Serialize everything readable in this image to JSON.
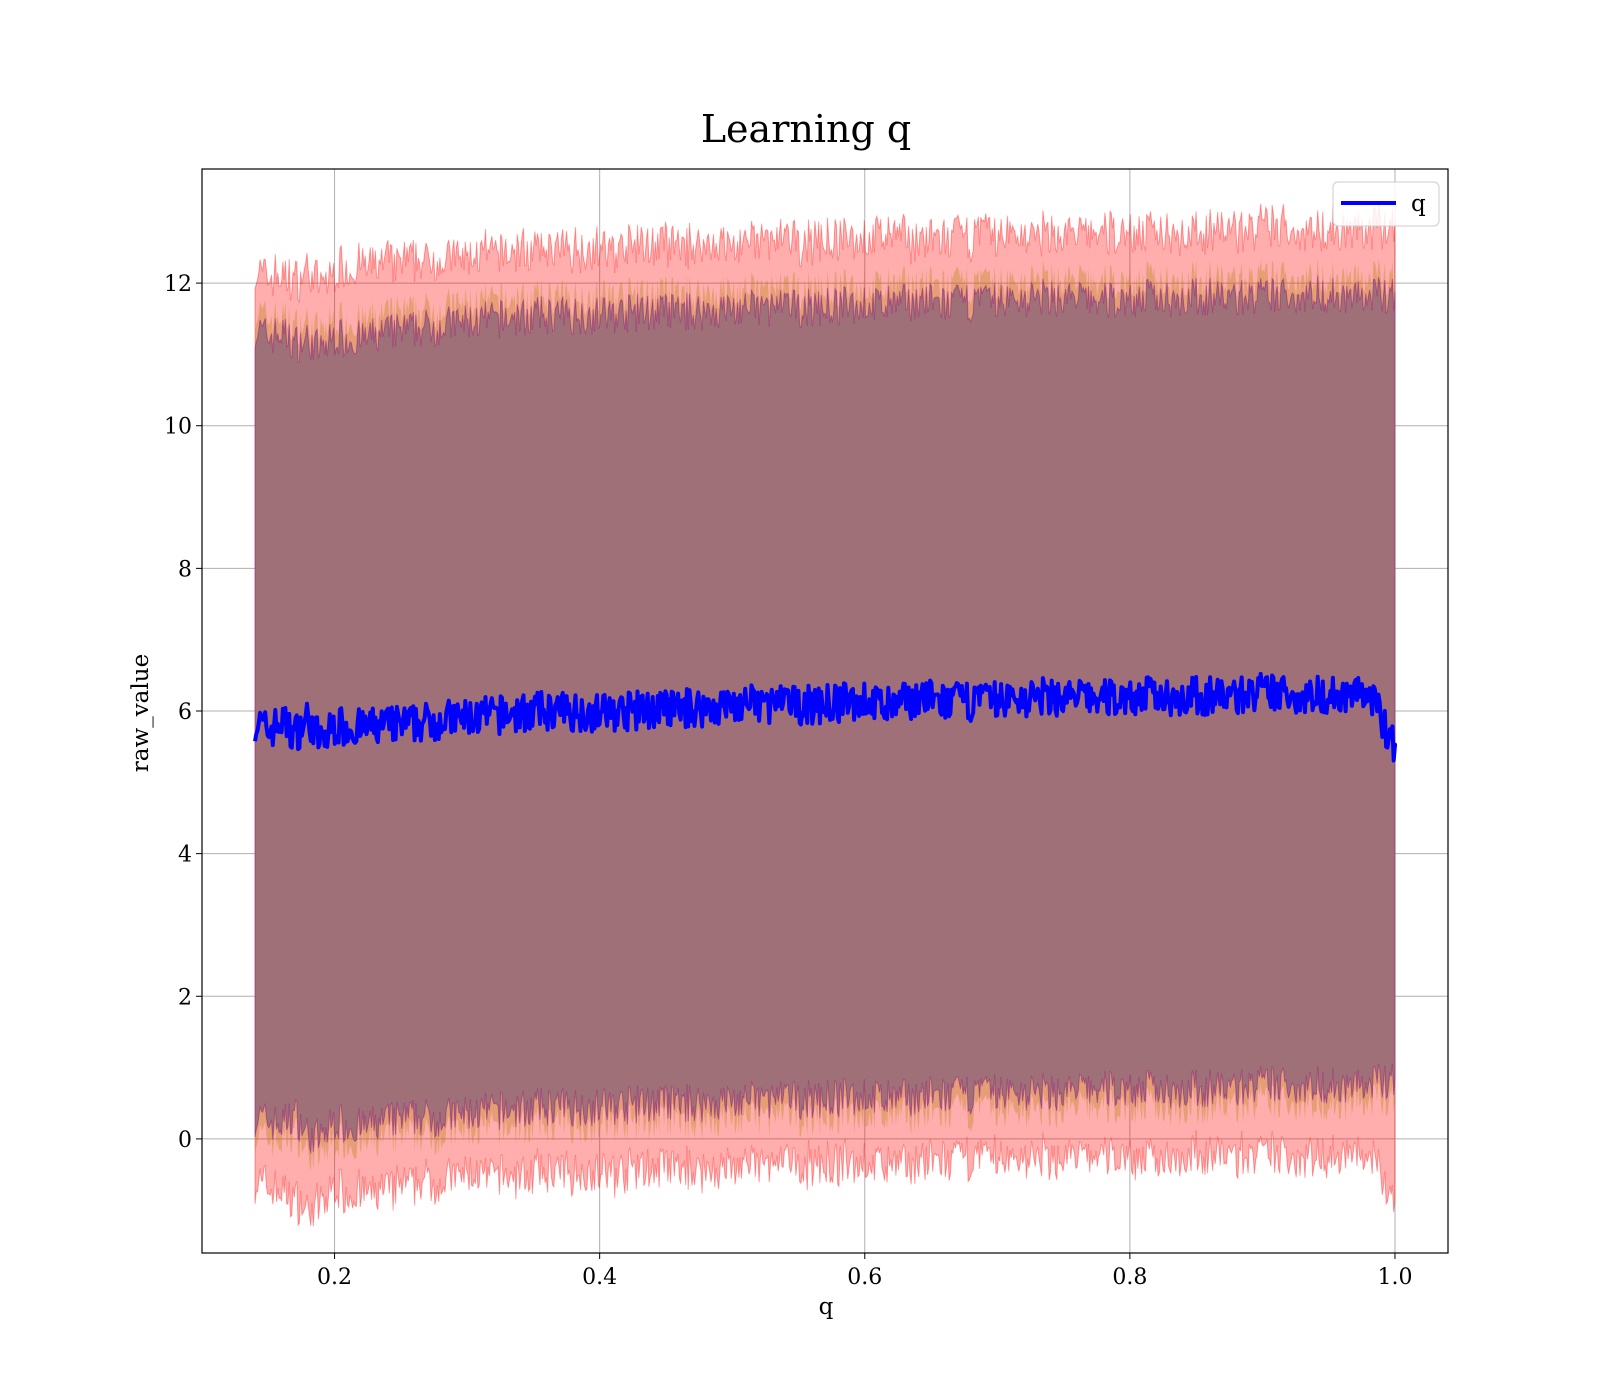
{
  "chart_data": {
    "type": "line",
    "title": "Learning q",
    "xlabel": "q",
    "ylabel": "raw_value",
    "xlim": [
      0.1,
      1.04
    ],
    "ylim": [
      -1.6,
      13.6
    ],
    "xticks": [
      0.2,
      0.4,
      0.6,
      0.8,
      1.0
    ],
    "xtick_labels": [
      "0.2",
      "0.4",
      "0.6",
      "0.8",
      "1.0"
    ],
    "yticks": [
      0,
      2,
      4,
      6,
      8,
      10,
      12
    ],
    "ytick_labels": [
      "0",
      "2",
      "4",
      "6",
      "8",
      "10",
      "12"
    ],
    "grid": true,
    "legend": {
      "location": "top-right",
      "entries": [
        {
          "label": "q",
          "color": "#0000ff"
        }
      ]
    },
    "colors": {
      "line": "#0000ff",
      "band_inner": "#800080",
      "band_outer": "#ff0000",
      "band_mid": "#b8860b",
      "fill_main": "#a07078"
    },
    "series": [
      {
        "name": "q",
        "x": [
          0.14,
          0.15,
          0.16,
          0.17,
          0.18,
          0.19,
          0.2,
          0.22,
          0.24,
          0.26,
          0.28,
          0.3,
          0.33,
          0.36,
          0.4,
          0.44,
          0.48,
          0.52,
          0.56,
          0.6,
          0.62,
          0.64,
          0.66,
          0.7,
          0.74,
          0.78,
          0.82,
          0.86,
          0.9,
          0.94,
          0.98,
          1.0
        ],
        "mean": [
          5.85,
          5.72,
          5.85,
          5.68,
          5.9,
          5.55,
          5.8,
          5.75,
          5.8,
          5.82,
          5.88,
          5.9,
          5.95,
          6.0,
          5.98,
          6.02,
          6.05,
          6.1,
          6.08,
          6.15,
          6.05,
          6.2,
          6.12,
          6.15,
          6.2,
          6.18,
          6.22,
          6.2,
          6.25,
          6.22,
          6.25,
          5.5
        ],
        "upper_inner": [
          11.6,
          11.5,
          11.55,
          11.4,
          11.45,
          11.3,
          11.5,
          11.45,
          11.55,
          11.6,
          11.65,
          11.7,
          11.75,
          11.8,
          11.8,
          11.85,
          11.85,
          11.9,
          11.9,
          11.95,
          11.95,
          12.0,
          11.95,
          12.0,
          12.05,
          12.0,
          12.05,
          12.05,
          12.05,
          12.1,
          12.05,
          12.1
        ],
        "upper_outer": [
          12.1,
          12.0,
          12.05,
          11.95,
          12.1,
          11.9,
          12.1,
          12.15,
          12.2,
          12.2,
          12.25,
          12.3,
          12.35,
          12.4,
          12.4,
          12.45,
          12.45,
          12.5,
          12.5,
          12.55,
          12.6,
          12.55,
          12.55,
          12.6,
          12.6,
          12.6,
          12.65,
          12.65,
          12.7,
          12.7,
          12.65,
          12.75
        ],
        "lower_inner": [
          0.05,
          0.0,
          -0.05,
          0.1,
          -0.2,
          -0.25,
          0.0,
          -0.1,
          0.0,
          0.05,
          0.05,
          0.1,
          0.15,
          0.2,
          0.2,
          0.25,
          0.25,
          0.3,
          0.3,
          0.35,
          0.3,
          0.35,
          0.35,
          0.4,
          0.4,
          0.45,
          0.45,
          0.45,
          0.5,
          0.5,
          0.5,
          0.6
        ],
        "lower_outer": [
          -0.55,
          -0.6,
          -0.7,
          -0.75,
          -0.9,
          -0.85,
          -0.6,
          -0.7,
          -0.65,
          -0.55,
          -0.5,
          -0.45,
          -0.45,
          -0.4,
          -0.4,
          -0.35,
          -0.35,
          -0.3,
          -0.3,
          -0.25,
          -0.3,
          -0.25,
          -0.25,
          -0.2,
          -0.2,
          -0.15,
          -0.2,
          -0.15,
          -0.15,
          -0.15,
          -0.15,
          -0.8
        ]
      }
    ]
  }
}
